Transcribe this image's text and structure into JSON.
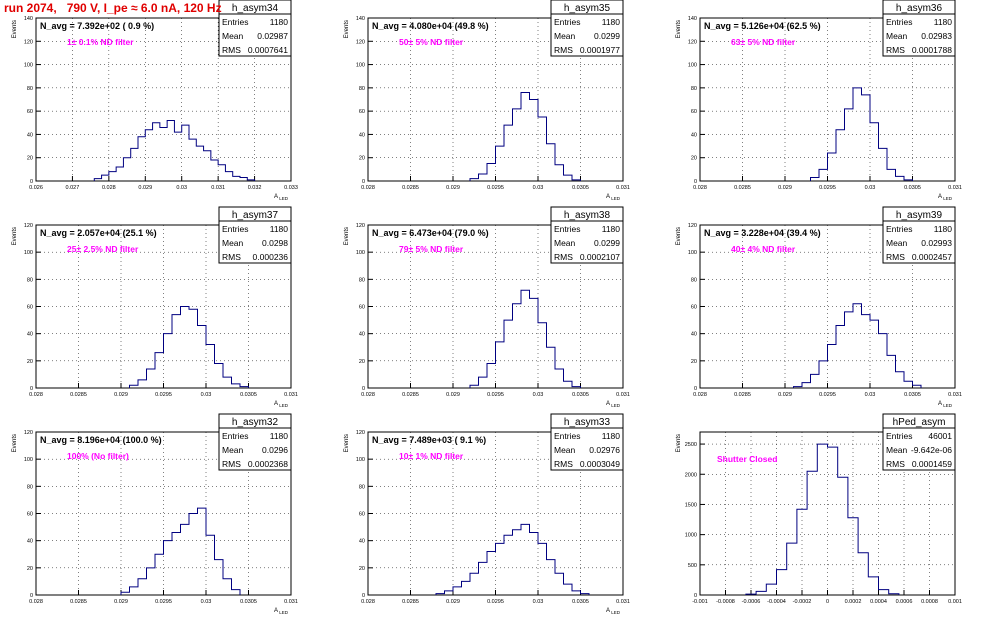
{
  "run_title": "run 2074,   790 V, I_pe ≈ 6.0 nA, 120 Hz",
  "colors": {
    "histogram": "#000080",
    "annotation": "#ff00ff",
    "title": "#e00000"
  },
  "stats_labels": {
    "entries": "Entries",
    "mean": "Mean",
    "rms": "RMS"
  },
  "chart_data": [
    {
      "type": "histogram",
      "name": "h_asym34",
      "ylabel": "Events",
      "xlabel": "A_LED",
      "info": "N_avg = 7.392e+02 ( 0.9 %)",
      "note": "1± 0.1% ND filter",
      "stats": {
        "entries": "1180",
        "mean": "0.02987",
        "rms": "0.0007641"
      },
      "xlim": [
        0.026,
        0.033
      ],
      "ylim": [
        0,
        140
      ],
      "xticks": [
        0.026,
        0.027,
        0.028,
        0.029,
        0.03,
        0.031,
        0.032,
        0.033
      ],
      "xtick_labels": [
        "0.026",
        "0.027",
        "0.028",
        "0.029",
        "0.03",
        "0.031",
        "0.032",
        "0.033"
      ],
      "yticks": [
        0,
        20,
        40,
        60,
        80,
        100,
        120,
        140
      ],
      "x": [
        0.0277,
        0.0279,
        0.0281,
        0.0283,
        0.0285,
        0.0287,
        0.0289,
        0.0291,
        0.0293,
        0.0295,
        0.0297,
        0.0299,
        0.0301,
        0.0303,
        0.0305,
        0.0307,
        0.0309,
        0.0311,
        0.0313,
        0.0315,
        0.0317,
        0.0319
      ],
      "y": [
        2,
        5,
        8,
        12,
        20,
        28,
        38,
        44,
        50,
        46,
        52,
        42,
        48,
        36,
        30,
        26,
        18,
        14,
        8,
        4,
        3,
        1
      ]
    },
    {
      "type": "histogram",
      "name": "h_asym35",
      "ylabel": "Events",
      "xlabel": "A_LED",
      "info": "N_avg = 4.080e+04 (49.8 %)",
      "note": "50± 5% ND filter",
      "stats": {
        "entries": "1180",
        "mean": "0.0299",
        "rms": "0.0001977"
      },
      "xlim": [
        0.028,
        0.031
      ],
      "ylim": [
        0,
        140
      ],
      "xticks": [
        0.028,
        0.0285,
        0.029,
        0.0295,
        0.03,
        0.0305,
        0.031
      ],
      "xtick_labels": [
        "0.028",
        "0.0285",
        "0.029",
        "0.0295",
        "0.03",
        "0.0305",
        "0.031"
      ],
      "yticks": [
        0,
        20,
        40,
        60,
        80,
        100,
        120,
        140
      ],
      "x": [
        0.02925,
        0.02935,
        0.02945,
        0.02955,
        0.02965,
        0.02975,
        0.02985,
        0.02995,
        0.03005,
        0.03015,
        0.03025,
        0.03035,
        0.03045
      ],
      "y": [
        2,
        6,
        15,
        30,
        48,
        62,
        76,
        70,
        55,
        32,
        14,
        5,
        1
      ]
    },
    {
      "type": "histogram",
      "name": "h_asym36",
      "ylabel": "Events",
      "xlabel": "A_LED",
      "info": "N_avg = 5.126e+04 (62.5 %)",
      "note": "63± 5% ND filter",
      "stats": {
        "entries": "1180",
        "mean": "0.02983",
        "rms": "0.0001788"
      },
      "xlim": [
        0.028,
        0.031
      ],
      "ylim": [
        0,
        140
      ],
      "xticks": [
        0.028,
        0.0285,
        0.029,
        0.0295,
        0.03,
        0.0305,
        0.031
      ],
      "xtick_labels": [
        "0.028",
        "0.0285",
        "0.029",
        "0.0295",
        "0.03",
        "0.0305",
        "0.031"
      ],
      "yticks": [
        0,
        20,
        40,
        60,
        80,
        100,
        120,
        140
      ],
      "x": [
        0.02935,
        0.02945,
        0.02955,
        0.02965,
        0.02975,
        0.02985,
        0.02995,
        0.03005,
        0.03015,
        0.03025,
        0.03035,
        0.03045
      ],
      "y": [
        3,
        10,
        24,
        44,
        62,
        80,
        74,
        50,
        28,
        10,
        4,
        1
      ]
    },
    {
      "type": "histogram",
      "name": "h_asym37",
      "ylabel": "Events",
      "xlabel": "A_LED",
      "info": "N_avg = 2.057e+04 (25.1 %)",
      "note": "25± 2.5% ND filter",
      "stats": {
        "entries": "1180",
        "mean": "0.0298",
        "rms": "0.000236"
      },
      "xlim": [
        0.028,
        0.031
      ],
      "ylim": [
        0,
        120
      ],
      "xticks": [
        0.028,
        0.0285,
        0.029,
        0.0295,
        0.03,
        0.0305,
        0.031
      ],
      "xtick_labels": [
        "0.028",
        "0.0285",
        "0.029",
        "0.0295",
        "0.03",
        "0.0305",
        "0.031"
      ],
      "yticks": [
        0,
        20,
        40,
        60,
        80,
        100,
        120
      ],
      "x": [
        0.02915,
        0.02925,
        0.02935,
        0.02945,
        0.02955,
        0.02965,
        0.02975,
        0.02985,
        0.02995,
        0.03005,
        0.03015,
        0.03025,
        0.03035,
        0.03045
      ],
      "y": [
        2,
        6,
        14,
        26,
        40,
        54,
        60,
        58,
        46,
        32,
        18,
        8,
        3,
        1
      ]
    },
    {
      "type": "histogram",
      "name": "h_asym38",
      "ylabel": "Events",
      "xlabel": "A_LED",
      "info": "N_avg = 6.473e+04 (79.0 %)",
      "note": "79± 5% ND filter",
      "stats": {
        "entries": "1180",
        "mean": "0.0299",
        "rms": "0.0002107"
      },
      "xlim": [
        0.028,
        0.031
      ],
      "ylim": [
        0,
        120
      ],
      "xticks": [
        0.028,
        0.0285,
        0.029,
        0.0295,
        0.03,
        0.0305,
        0.031
      ],
      "xtick_labels": [
        "0.028",
        "0.0285",
        "0.029",
        "0.0295",
        "0.03",
        "0.0305",
        "0.031"
      ],
      "yticks": [
        0,
        20,
        40,
        60,
        80,
        100,
        120
      ],
      "x": [
        0.02925,
        0.02935,
        0.02945,
        0.02955,
        0.02965,
        0.02975,
        0.02985,
        0.02995,
        0.03005,
        0.03015,
        0.03025,
        0.03035,
        0.03045
      ],
      "y": [
        2,
        8,
        18,
        34,
        50,
        62,
        72,
        66,
        48,
        30,
        14,
        5,
        1
      ]
    },
    {
      "type": "histogram",
      "name": "h_asym39",
      "ylabel": "Events",
      "xlabel": "A_LED",
      "info": "N_avg = 3.228e+04 (39.4 %)",
      "note": "40± 4% ND filter",
      "stats": {
        "entries": "1180",
        "mean": "0.02993",
        "rms": "0.0002457"
      },
      "xlim": [
        0.028,
        0.031
      ],
      "ylim": [
        0,
        120
      ],
      "xticks": [
        0.028,
        0.0285,
        0.029,
        0.0295,
        0.03,
        0.0305,
        0.031
      ],
      "xtick_labels": [
        "0.028",
        "0.0285",
        "0.029",
        "0.0295",
        "0.03",
        "0.0305",
        "0.031"
      ],
      "yticks": [
        0,
        20,
        40,
        60,
        80,
        100,
        120
      ],
      "x": [
        0.02915,
        0.02925,
        0.02935,
        0.02945,
        0.02955,
        0.02965,
        0.02975,
        0.02985,
        0.02995,
        0.03005,
        0.03015,
        0.03025,
        0.03035,
        0.03045,
        0.03055
      ],
      "y": [
        1,
        4,
        10,
        20,
        32,
        46,
        56,
        62,
        54,
        50,
        40,
        24,
        12,
        5,
        2
      ]
    },
    {
      "type": "histogram",
      "name": "h_asym32",
      "ylabel": "Events",
      "xlabel": "A_LED",
      "info": "N_avg = 8.196e+04 (100.0 %)",
      "note": "100% (No filter)",
      "stats": {
        "entries": "1180",
        "mean": "0.0296",
        "rms": "0.0002368"
      },
      "xlim": [
        0.028,
        0.031
      ],
      "ylim": [
        0,
        120
      ],
      "xticks": [
        0.028,
        0.0285,
        0.029,
        0.0295,
        0.03,
        0.0305,
        0.031
      ],
      "xtick_labels": [
        "0.028",
        "0.0285",
        "0.029",
        "0.0295",
        "0.03",
        "0.0305",
        "0.031"
      ],
      "yticks": [
        0,
        20,
        40,
        60,
        80,
        100,
        120
      ],
      "x": [
        0.02905,
        0.02915,
        0.02925,
        0.02935,
        0.02945,
        0.02955,
        0.02965,
        0.02975,
        0.02985,
        0.02995,
        0.03005,
        0.03015,
        0.03025,
        0.03035
      ],
      "y": [
        2,
        6,
        12,
        20,
        30,
        40,
        46,
        52,
        60,
        64,
        44,
        26,
        12,
        4
      ]
    },
    {
      "type": "histogram",
      "name": "h_asym33",
      "ylabel": "Events",
      "xlabel": "A_LED",
      "info": "N_avg = 7.489e+03 ( 9.1 %)",
      "note": "10± 1% ND filter",
      "stats": {
        "entries": "1180",
        "mean": "0.02976",
        "rms": "0.0003049"
      },
      "xlim": [
        0.028,
        0.031
      ],
      "ylim": [
        0,
        120
      ],
      "xticks": [
        0.028,
        0.0285,
        0.029,
        0.0295,
        0.03,
        0.0305,
        0.031
      ],
      "xtick_labels": [
        "0.028",
        "0.0285",
        "0.029",
        "0.0295",
        "0.03",
        "0.0305",
        "0.031"
      ],
      "yticks": [
        0,
        20,
        40,
        60,
        80,
        100,
        120
      ],
      "x": [
        0.02885,
        0.02895,
        0.02905,
        0.02915,
        0.02925,
        0.02935,
        0.02945,
        0.02955,
        0.02965,
        0.02975,
        0.02985,
        0.02995,
        0.03005,
        0.03015,
        0.03025,
        0.03035,
        0.03045,
        0.03055
      ],
      "y": [
        1,
        3,
        6,
        10,
        16,
        24,
        32,
        38,
        44,
        48,
        52,
        46,
        38,
        26,
        16,
        8,
        3,
        1
      ]
    },
    {
      "type": "histogram",
      "name": "hPed_asym",
      "ylabel": "Events",
      "xlabel": "",
      "info": "",
      "note": "Shutter Closed",
      "stats": {
        "entries": "46001",
        "mean": "-9.642e-06",
        "rms": "0.0001459"
      },
      "xlim": [
        -0.001,
        0.001
      ],
      "ylim": [
        0,
        2700
      ],
      "xticks": [
        -0.001,
        -0.0008,
        -0.0006,
        -0.0004,
        -0.0002,
        0,
        0.0002,
        0.0004,
        0.0006,
        0.0008,
        0.001
      ],
      "xtick_labels": [
        "-0.001",
        "-0.0008",
        "-0.0006",
        "-0.0004",
        "-0.0002",
        "0",
        "0.0002",
        "0.0004",
        "0.0006",
        "0.0008",
        "0.001"
      ],
      "yticks": [
        0,
        500,
        1000,
        1500,
        2000,
        2500
      ],
      "x": [
        -0.0006,
        -0.00052,
        -0.00044,
        -0.00036,
        -0.00028,
        -0.0002,
        -0.00012,
        -4e-05,
        4e-05,
        0.00012,
        0.0002,
        0.00028,
        0.00036,
        0.00044,
        0.00052
      ],
      "y": [
        15,
        60,
        180,
        420,
        860,
        1420,
        2050,
        2500,
        2450,
        1950,
        1280,
        700,
        300,
        90,
        20
      ]
    }
  ]
}
